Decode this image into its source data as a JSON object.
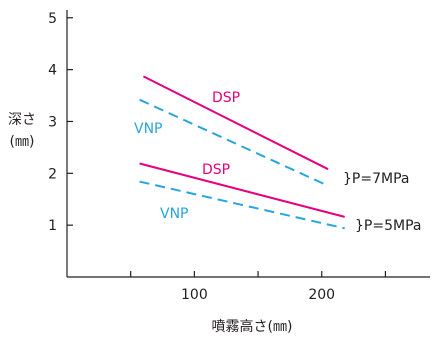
{
  "chart_data": {
    "type": "line",
    "xlabel": "噴霧高さ(㎜)",
    "ylabel_line1": "深さ",
    "ylabel_line2": "(㎜)",
    "x_ticks": [
      {
        "value": 50,
        "label": ""
      },
      {
        "value": 100,
        "label": "100"
      },
      {
        "value": 150,
        "label": ""
      },
      {
        "value": 200,
        "label": "200"
      },
      {
        "value": 250,
        "label": ""
      }
    ],
    "y_ticks": [
      {
        "value": 1,
        "label": "1"
      },
      {
        "value": 2,
        "label": "2"
      },
      {
        "value": 3,
        "label": "3"
      },
      {
        "value": 4,
        "label": "4"
      },
      {
        "value": 5,
        "label": "5"
      }
    ],
    "xlim": [
      0,
      285
    ],
    "ylim": [
      0,
      5.15
    ],
    "grid": false,
    "colors": {
      "DSP": "#e5007f",
      "VNP": "#27a6dc",
      "axis": "#231f20"
    },
    "series": [
      {
        "name": "DSP",
        "group": "P=7MPa",
        "style": "solid",
        "color": "#e5007f",
        "x": [
          60,
          205
        ],
        "y": [
          3.87,
          2.08
        ]
      },
      {
        "name": "VNP",
        "group": "P=7MPa",
        "style": "dashed",
        "color": "#27a6dc",
        "x": [
          57,
          205
        ],
        "y": [
          3.42,
          1.76
        ]
      },
      {
        "name": "DSP",
        "group": "P=5MPa",
        "style": "solid",
        "color": "#e5007f",
        "x": [
          57,
          218
        ],
        "y": [
          2.19,
          1.16
        ]
      },
      {
        "name": "VNP",
        "group": "P=5MPa",
        "style": "dashed",
        "color": "#27a6dc",
        "x": [
          57,
          218
        ],
        "y": [
          1.84,
          0.94
        ]
      }
    ],
    "groups": [
      "}P=7MPa",
      "}P=5MPa"
    ]
  }
}
